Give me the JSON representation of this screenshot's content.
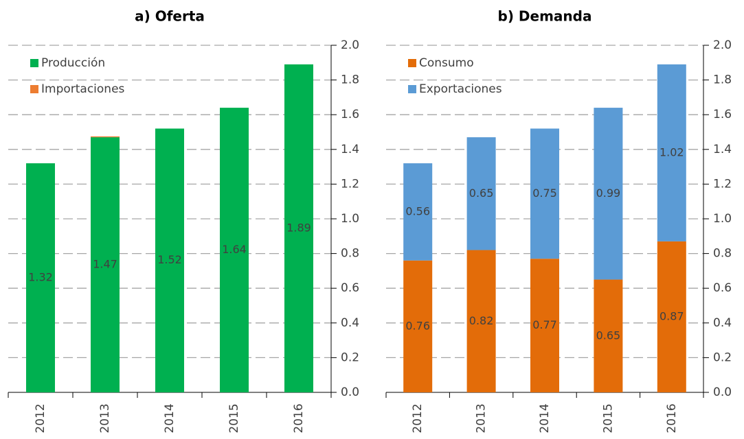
{
  "chart_data": [
    {
      "type": "bar",
      "stacked": true,
      "title": "a)   Oferta",
      "categories": [
        "2012",
        "2013",
        "2014",
        "2015",
        "2016"
      ],
      "series": [
        {
          "name": "Producción",
          "color": "#00b050",
          "values": [
            1.32,
            1.47,
            1.52,
            1.64,
            1.89
          ],
          "labels": true
        },
        {
          "name": "Importaciones",
          "color": "#ed7d31",
          "values": [
            0,
            0.005,
            0,
            0,
            0
          ],
          "labels": false
        }
      ],
      "ylim": [
        0,
        2
      ],
      "yticks": [
        {
          "value": 0,
          "label": "0.0"
        },
        0.2,
        0.4,
        0.6,
        0.8,
        {
          "value": 1,
          "label": "1.0"
        },
        1.2,
        1.4,
        1.6,
        1.8,
        {
          "value": 2,
          "label": "2.0"
        }
      ],
      "grid": true,
      "legend": "top-left",
      "yaxis_side": "right"
    },
    {
      "type": "bar",
      "stacked": true,
      "title": "b)   Demanda",
      "categories": [
        "2012",
        "2013",
        "2014",
        "2015",
        "2016"
      ],
      "series": [
        {
          "name": "Consumo",
          "color": "#e36c09",
          "values": [
            0.76,
            0.82,
            0.77,
            0.65,
            0.87
          ],
          "labels": true
        },
        {
          "name": "Exportaciones",
          "color": "#5b9bd5",
          "values": [
            0.56,
            0.65,
            0.75,
            0.99,
            1.02
          ],
          "labels": true
        }
      ],
      "ylim": [
        0,
        2
      ],
      "yticks": [
        {
          "value": 0,
          "label": "0.0"
        },
        0.2,
        0.4,
        0.6,
        0.8,
        {
          "value": 1,
          "label": "1.0"
        },
        1.2,
        1.4,
        1.6,
        1.8,
        {
          "value": 2,
          "label": "2.0"
        }
      ],
      "grid": true,
      "legend": "top-left",
      "yaxis_side": "right"
    }
  ]
}
